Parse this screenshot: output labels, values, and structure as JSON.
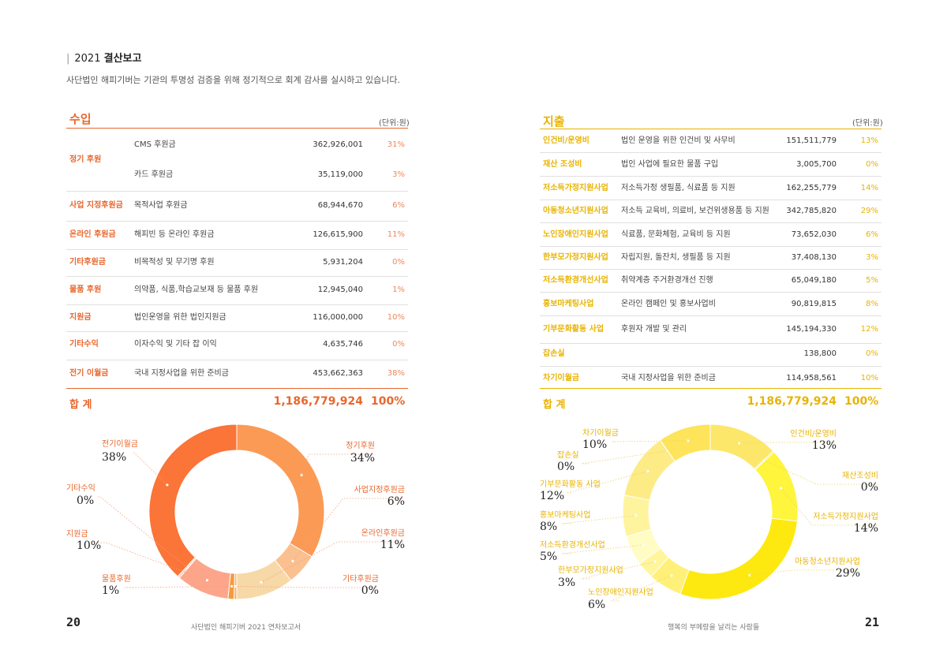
{
  "header": {
    "title_prefix": "2021",
    "title_bold": "결산보고",
    "subtitle": "사단법인 해피기버는 기관의 투명성 검증을 위해 정기적으로 회계 감사를 실시하고 있습니다."
  },
  "income": {
    "title": "수입",
    "unit": "(단위:원)",
    "rows": [
      {
        "category": "정기 후원",
        "desc": "CMS 후원금",
        "amount": "362,926,001",
        "pct": "31%"
      },
      {
        "category": "",
        "desc": "카드 후원금",
        "amount": "35,119,000",
        "pct": "3%"
      },
      {
        "category": "사업 지정후원금",
        "desc": "목적사업 후원금",
        "amount": "68,944,670",
        "pct": "6%"
      },
      {
        "category": "온라인 후원금",
        "desc": "해피빈 등 온라인 후원금",
        "amount": "126,615,900",
        "pct": "11%"
      },
      {
        "category": "기타후원금",
        "desc": "비목적성 및 무기명 후원",
        "amount": "5,931,204",
        "pct": "0%"
      },
      {
        "category": "물품 후원",
        "desc": "의약품, 식품,학습교보재 등 물품 후원",
        "amount": "12,945,040",
        "pct": "1%"
      },
      {
        "category": "지원금",
        "desc": "법인운영을 위한 법인지원금",
        "amount": "116,000,000",
        "pct": "10%"
      },
      {
        "category": "기타수익",
        "desc": "이자수익 및 기타 잡 이익",
        "amount": "4,635,746",
        "pct": "0%"
      },
      {
        "category": "전기 이월금",
        "desc": "국내 지정사업을 위한 준비금",
        "amount": "453,662,363",
        "pct": "38%"
      }
    ],
    "total_label": "합 계",
    "total_amount": "1,186,779,924",
    "total_pct": "100%"
  },
  "expense": {
    "title": "지출",
    "unit": "(단위:원)",
    "rows": [
      {
        "category": "인건비/운영비",
        "desc": "법인 운영을 위한 인건비 및 사무비",
        "amount": "151,511,779",
        "pct": "13%"
      },
      {
        "category": "재산 조성비",
        "desc": "법인 사업에 필요한 물품 구입",
        "amount": "3,005,700",
        "pct": "0%"
      },
      {
        "category": "저소득가정지원사업",
        "desc": "저소득가정 생필품, 식료품 등 지원",
        "amount": "162,255,779",
        "pct": "14%"
      },
      {
        "category": "아동청소년지원사업",
        "desc": "저소득 교육비, 의료비, 보건위생용품 등 지원",
        "amount": "342,785,820",
        "pct": "29%"
      },
      {
        "category": "노인장애인지원사업",
        "desc": "식료품, 문화체험, 교육비 등 지원",
        "amount": "73,652,030",
        "pct": "6%"
      },
      {
        "category": "한부모가정지원사업",
        "desc": "자립지원, 돌잔치, 생필품 등 지원",
        "amount": "37,408,130",
        "pct": "3%"
      },
      {
        "category": "저소득환경개선사업",
        "desc": "취약계층 주거환경개선 진행",
        "amount": "65,049,180",
        "pct": "5%"
      },
      {
        "category": "홍보마케팅사업",
        "desc": "온라인 캠페인 및 홍보사업비",
        "amount": "90,819,815",
        "pct": "8%"
      },
      {
        "category": "기부문화활동 사업",
        "desc": "후원자 개발 및 관리",
        "amount": "145,194,330",
        "pct": "12%"
      },
      {
        "category": "잡손실",
        "desc": "",
        "amount": "138,800",
        "pct": "0%"
      },
      {
        "category": "차기이월금",
        "desc": "국내 지정사업을 위한 준비금",
        "amount": "114,958,561",
        "pct": "10%"
      }
    ],
    "total_label": "합 계",
    "total_amount": "1,186,779,924",
    "total_pct": "100%"
  },
  "income_chart": {
    "type": "pie",
    "slices": [
      {
        "name": "정기후원",
        "label_pct": "34%",
        "value": 398045001,
        "color": "#fb9a55"
      },
      {
        "name": "사업지정후원금",
        "label_pct": "6%",
        "value": 68944670,
        "color": "#fbc08f"
      },
      {
        "name": "온라인후원금",
        "label_pct": "11%",
        "value": 126615900,
        "color": "#f6d9a6"
      },
      {
        "name": "기타후원금",
        "label_pct": "0%",
        "value": 5931204,
        "color": "#f8b56e"
      },
      {
        "name": "물품후원",
        "label_pct": "1%",
        "value": 12945040,
        "color": "#f69a3c"
      },
      {
        "name": "지원금",
        "label_pct": "10%",
        "value": 116000000,
        "color": "#fca58a"
      },
      {
        "name": "기타수익",
        "label_pct": "0%",
        "value": 4635746,
        "color": "#fdcbb4"
      },
      {
        "name": "전기이월금",
        "label_pct": "38%",
        "value": 453662363,
        "color": "#fb7438"
      }
    ]
  },
  "expense_chart": {
    "type": "pie",
    "slices": [
      {
        "name": "인건비/운영비",
        "label_pct": "13%",
        "value": 151511779,
        "color": "#fde76b"
      },
      {
        "name": "재산조성비",
        "label_pct": "0%",
        "value": 3005700,
        "color": "#fde04a"
      },
      {
        "name": "저소득가정지원사업",
        "label_pct": "14%",
        "value": 162255779,
        "color": "#fef53c"
      },
      {
        "name": "아동청소년지원사업",
        "label_pct": "29%",
        "value": 342785820,
        "color": "#fde90f"
      },
      {
        "name": "노인장애인지원사업",
        "label_pct": "6%",
        "value": 73652030,
        "color": "#fff079"
      },
      {
        "name": "한부모가정지원사업",
        "label_pct": "3%",
        "value": 37408130,
        "color": "#fff59c"
      },
      {
        "name": "저소득환경개선사업",
        "label_pct": "5%",
        "value": 65049180,
        "color": "#fffcc4"
      },
      {
        "name": "홍보마케팅사업",
        "label_pct": "8%",
        "value": 90819815,
        "color": "#fff49e"
      },
      {
        "name": "기부문화활동 사업",
        "label_pct": "12%",
        "value": 145194330,
        "color": "#fdeb86"
      },
      {
        "name": "잡손실",
        "label_pct": "0%",
        "value": 138800,
        "color": "#fde37a"
      },
      {
        "name": "차기이월금",
        "label_pct": "10%",
        "value": 114958561,
        "color": "#fde45a"
      }
    ]
  },
  "footer": {
    "left_page": "20",
    "left_text": "사단법인 해피기버 2021 연차보고서",
    "right_text": "행복의 부메랑을 날리는 사람들",
    "right_page": "21"
  },
  "colors": {
    "income_accent": "#e8672d",
    "expense_accent": "#e9b300"
  }
}
